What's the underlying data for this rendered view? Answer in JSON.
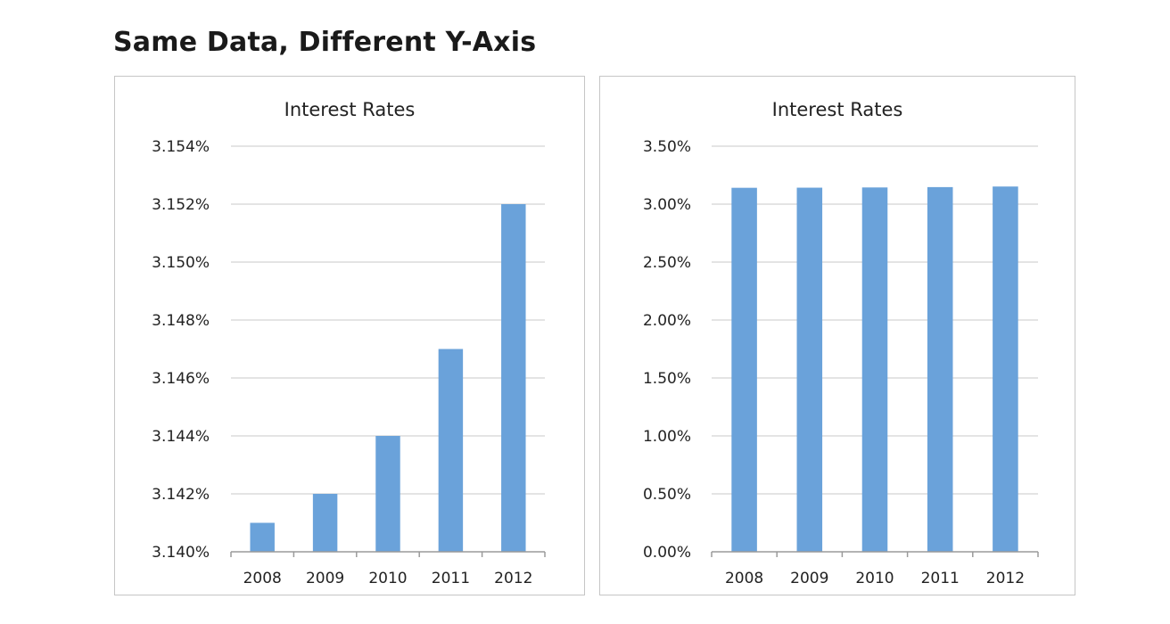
{
  "page": {
    "title": "Same Data, Different Y-Axis"
  },
  "colors": {
    "bar": "#6aa2da",
    "grid": "#e4e4e4",
    "axis": "#9a9a9a",
    "text": "#222222"
  },
  "chart_data": [
    {
      "type": "bar",
      "title": "Interest Rates",
      "categories": [
        "2008",
        "2009",
        "2010",
        "2011",
        "2012"
      ],
      "values": [
        3.141,
        3.142,
        3.144,
        3.147,
        3.152
      ],
      "ylim": [
        3.14,
        3.154
      ],
      "yticks": [
        3.14,
        3.142,
        3.144,
        3.146,
        3.148,
        3.15,
        3.152,
        3.154
      ],
      "ytick_labels": [
        "3.140%",
        "3.142%",
        "3.144%",
        "3.146%",
        "3.148%",
        "3.150%",
        "3.152%",
        "3.154%"
      ],
      "xlabel": "",
      "ylabel": "",
      "grid": true
    },
    {
      "type": "bar",
      "title": "Interest Rates",
      "categories": [
        "2008",
        "2009",
        "2010",
        "2011",
        "2012"
      ],
      "values": [
        3.141,
        3.142,
        3.144,
        3.147,
        3.152
      ],
      "ylim": [
        0,
        3.5
      ],
      "yticks": [
        0,
        0.5,
        1.0,
        1.5,
        2.0,
        2.5,
        3.0,
        3.5
      ],
      "ytick_labels": [
        "0.00%",
        "0.50%",
        "1.00%",
        "1.50%",
        "2.00%",
        "2.50%",
        "3.00%",
        "3.50%"
      ],
      "xlabel": "",
      "ylabel": "",
      "grid": true
    }
  ]
}
